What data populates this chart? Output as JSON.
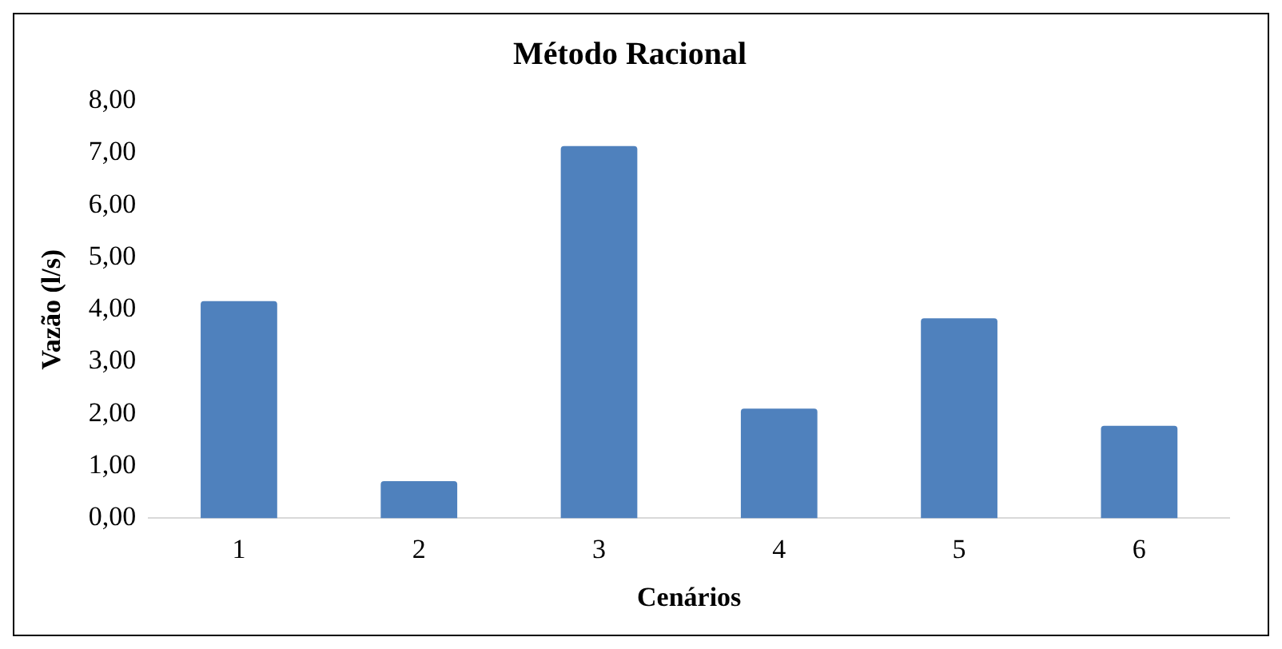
{
  "chart_data": {
    "type": "bar",
    "title": "Método Racional",
    "xlabel": "Cenários",
    "ylabel": "Vazão (l/s)",
    "categories": [
      "1",
      "2",
      "3",
      "4",
      "5",
      "6"
    ],
    "values": [
      4.16,
      0.71,
      7.13,
      2.1,
      3.83,
      1.77
    ],
    "color": "#4f81bd",
    "ylim": [
      0,
      8
    ],
    "yticks": [
      {
        "value": 0,
        "label": "0,00"
      },
      {
        "value": 1,
        "label": "1,00"
      },
      {
        "value": 2,
        "label": "2,00"
      },
      {
        "value": 3,
        "label": "3,00"
      },
      {
        "value": 4,
        "label": "4,00"
      },
      {
        "value": 5,
        "label": "5,00"
      },
      {
        "value": 6,
        "label": "6,00"
      },
      {
        "value": 7,
        "label": "7,00"
      },
      {
        "value": 8,
        "label": "8,00"
      }
    ],
    "grid": false,
    "legend": false
  }
}
